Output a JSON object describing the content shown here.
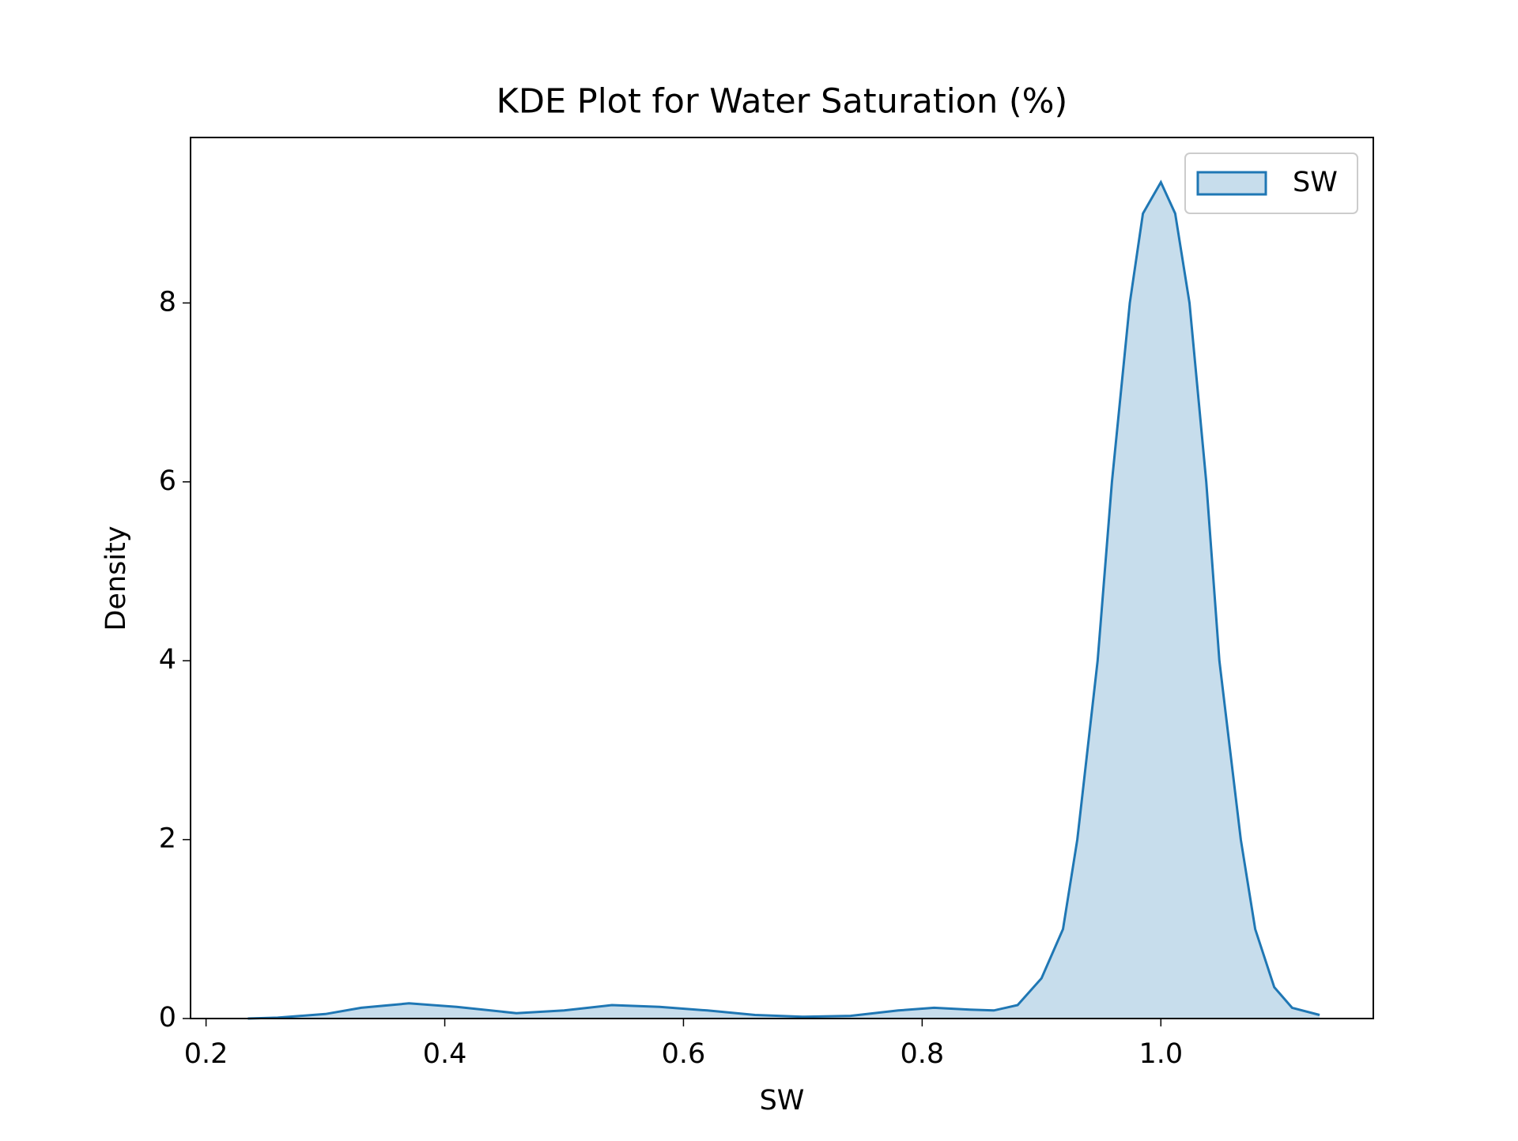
{
  "chart_data": {
    "type": "kde",
    "title": "KDE Plot for Water Saturation (%)",
    "xlabel": "SW",
    "ylabel": "Density",
    "x": [
      0.235,
      0.26,
      0.3,
      0.33,
      0.37,
      0.41,
      0.46,
      0.5,
      0.54,
      0.58,
      0.62,
      0.66,
      0.7,
      0.74,
      0.78,
      0.81,
      0.84,
      0.86,
      0.88,
      0.9,
      0.918,
      0.93,
      0.947,
      0.959,
      0.974,
      0.985,
      1.0,
      1.012,
      1.024,
      1.038,
      1.049,
      1.067,
      1.079,
      1.095,
      1.11,
      1.133
    ],
    "series": [
      {
        "name": "SW",
        "color": "#1f77b4",
        "values": [
          0.0,
          0.01,
          0.05,
          0.12,
          0.17,
          0.13,
          0.06,
          0.09,
          0.15,
          0.13,
          0.09,
          0.04,
          0.02,
          0.03,
          0.09,
          0.12,
          0.1,
          0.09,
          0.15,
          0.45,
          1.0,
          2.0,
          4.0,
          6.0,
          8.0,
          9.0,
          9.35,
          9.0,
          8.0,
          6.0,
          4.0,
          2.0,
          1.0,
          0.35,
          0.12,
          0.04
        ]
      }
    ],
    "xlim": [
      0.187,
      1.178
    ],
    "ylim": [
      0,
      9.85
    ],
    "xticks": [
      0.2,
      0.4,
      0.6,
      0.8,
      {
        "value": 1.0,
        "label": "1.0"
      }
    ],
    "yticks": [
      0,
      2,
      4,
      6,
      8
    ],
    "fill_alpha": 0.25,
    "legend": "upper right"
  }
}
